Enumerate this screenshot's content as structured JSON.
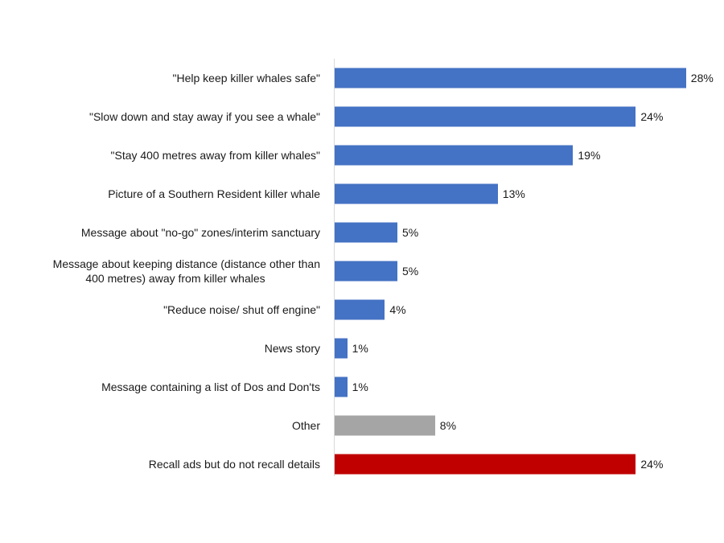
{
  "chart_data": {
    "type": "bar",
    "orientation": "horizontal",
    "title": "",
    "xlabel": "",
    "ylabel": "",
    "xlim": [
      0,
      28
    ],
    "grid": false,
    "legend": null,
    "categories": [
      "\"Help keep killer whales safe\"",
      "\"Slow down and stay away if you see a whale\"",
      "\"Stay 400 metres away from killer whales\"",
      "Picture of a Southern Resident killer whale",
      "Message about \"no-go\" zones/interim sanctuary",
      "Message about keeping distance (distance other than 400 metres) away from killer whales",
      "\"Reduce noise/ shut off engine\"",
      "News story",
      "Message containing a list of Dos and Don'ts",
      "Other",
      "Recall ads but do not recall details"
    ],
    "values": [
      28,
      24,
      19,
      13,
      5,
      5,
      4,
      1,
      1,
      8,
      24
    ],
    "value_labels": [
      "28%",
      "24%",
      "19%",
      "13%",
      "5%",
      "5%",
      "4%",
      "1%",
      "1%",
      "8%",
      "24%"
    ],
    "colors": [
      "#4472C4",
      "#4472C4",
      "#4472C4",
      "#4472C4",
      "#4472C4",
      "#4472C4",
      "#4472C4",
      "#4472C4",
      "#4472C4",
      "#A5A5A5",
      "#C00000"
    ]
  },
  "rows": [
    {
      "label": "\"Help keep killer whales safe\"",
      "value": 28,
      "value_label": "28%",
      "color": "#4472C4"
    },
    {
      "label": "\"Slow down and stay away if you see a whale\"",
      "value": 24,
      "value_label": "24%",
      "color": "#4472C4"
    },
    {
      "label": "\"Stay 400 metres away from killer whales\"",
      "value": 19,
      "value_label": "19%",
      "color": "#4472C4"
    },
    {
      "label": "Picture of a Southern Resident killer whale",
      "value": 13,
      "value_label": "13%",
      "color": "#4472C4"
    },
    {
      "label": "Message about \"no-go\" zones/interim sanctuary",
      "value": 5,
      "value_label": "5%",
      "color": "#4472C4"
    },
    {
      "label_line1": "Message about keeping distance (distance other than",
      "label_line2": "400 metres) away from killer whales",
      "label": "Message about keeping distance (distance other than 400 metres) away from killer whales",
      "value": 5,
      "value_label": "5%",
      "color": "#4472C4"
    },
    {
      "label": "\"Reduce noise/ shut off engine\"",
      "value": 4,
      "value_label": "4%",
      "color": "#4472C4"
    },
    {
      "label": "News story",
      "value": 1,
      "value_label": "1%",
      "color": "#4472C4"
    },
    {
      "label": "Message containing a list of Dos and Don'ts",
      "value": 1,
      "value_label": "1%",
      "color": "#4472C4"
    },
    {
      "label": "Other",
      "value": 8,
      "value_label": "8%",
      "color": "#A5A5A5"
    },
    {
      "label": "Recall ads but do not recall details",
      "value": 24,
      "value_label": "24%",
      "color": "#C00000"
    }
  ]
}
